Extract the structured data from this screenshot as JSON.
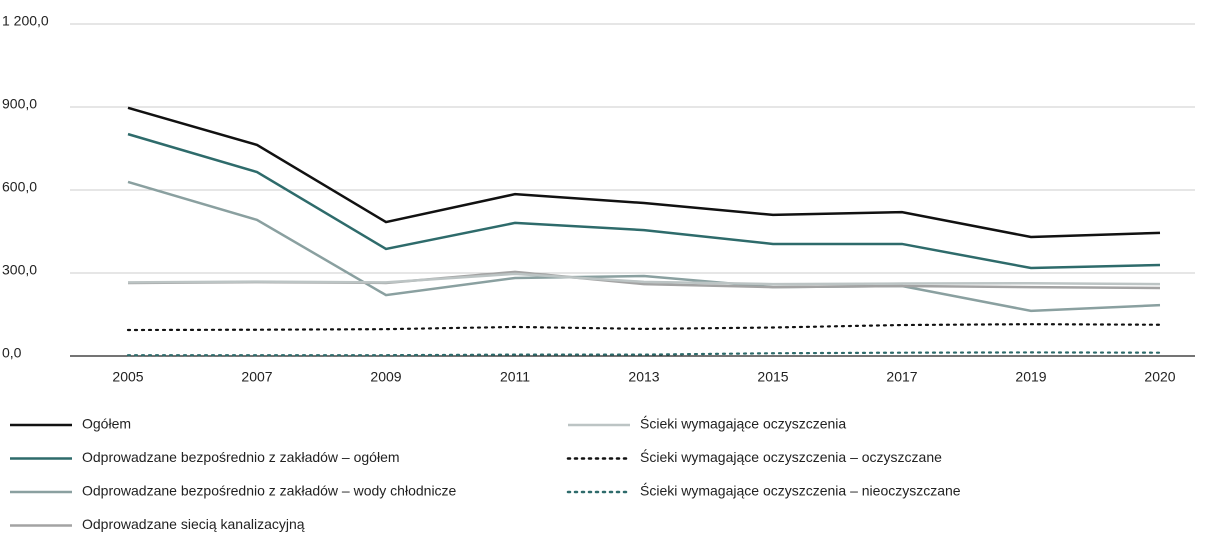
{
  "chart_data": {
    "type": "line",
    "categories": [
      "2005",
      "2007",
      "2009",
      "2011",
      "2013",
      "2015",
      "2017",
      "2019",
      "2020"
    ],
    "ylim": [
      0,
      1200
    ],
    "yticks": [
      {
        "value": 0,
        "label": "0,0"
      },
      {
        "value": 300,
        "label": "300,0"
      },
      {
        "value": 600,
        "label": "600,0"
      },
      {
        "value": 900,
        "label": "900,0"
      },
      {
        "value": 1200,
        "label": "1 200,0"
      }
    ],
    "grid": true,
    "series": [
      {
        "name": "Ogółem",
        "color": "#111111",
        "dash": "solid",
        "values": [
          897,
          763,
          484,
          585,
          553,
          510,
          520,
          430,
          445
        ]
      },
      {
        "name": "Odprowadzane bezpośrednio z zakładów – ogółem",
        "color": "#2e6b6b",
        "dash": "solid",
        "values": [
          802,
          665,
          387,
          481,
          455,
          405,
          405,
          318,
          329
        ]
      },
      {
        "name": "Odprowadzane bezpośrednio z zakładów – wody chłodnicze",
        "color": "#8aa0a0",
        "dash": "solid",
        "values": [
          629,
          492,
          220,
          282,
          289,
          249,
          253,
          163,
          184
        ]
      },
      {
        "name": "Odprowadzane siecią kanalizacyjną",
        "color": "#a3a3a3",
        "dash": "solid",
        "values": [
          264,
          267,
          264,
          304,
          260,
          249,
          253,
          249,
          246
        ]
      },
      {
        "name": "Ścieki wymagające oczyszczenia",
        "color": "#bcc4c4",
        "dash": "solid",
        "values": [
          266,
          269,
          266,
          297,
          268,
          260,
          262,
          263,
          260
        ]
      },
      {
        "name": "Ścieki wymagające oczyszczenia – oczyszczane",
        "color": "#111111",
        "dash": "dotted",
        "values": [
          94,
          95,
          97,
          105,
          98,
          103,
          112,
          115,
          113
        ]
      },
      {
        "name": "Ścieki wymagające oczyszczenia – nieoczyszczane",
        "color": "#2e6b6b",
        "dash": "dotted",
        "values": [
          3,
          3,
          3,
          5,
          5,
          10,
          12,
          13,
          12
        ]
      }
    ]
  }
}
